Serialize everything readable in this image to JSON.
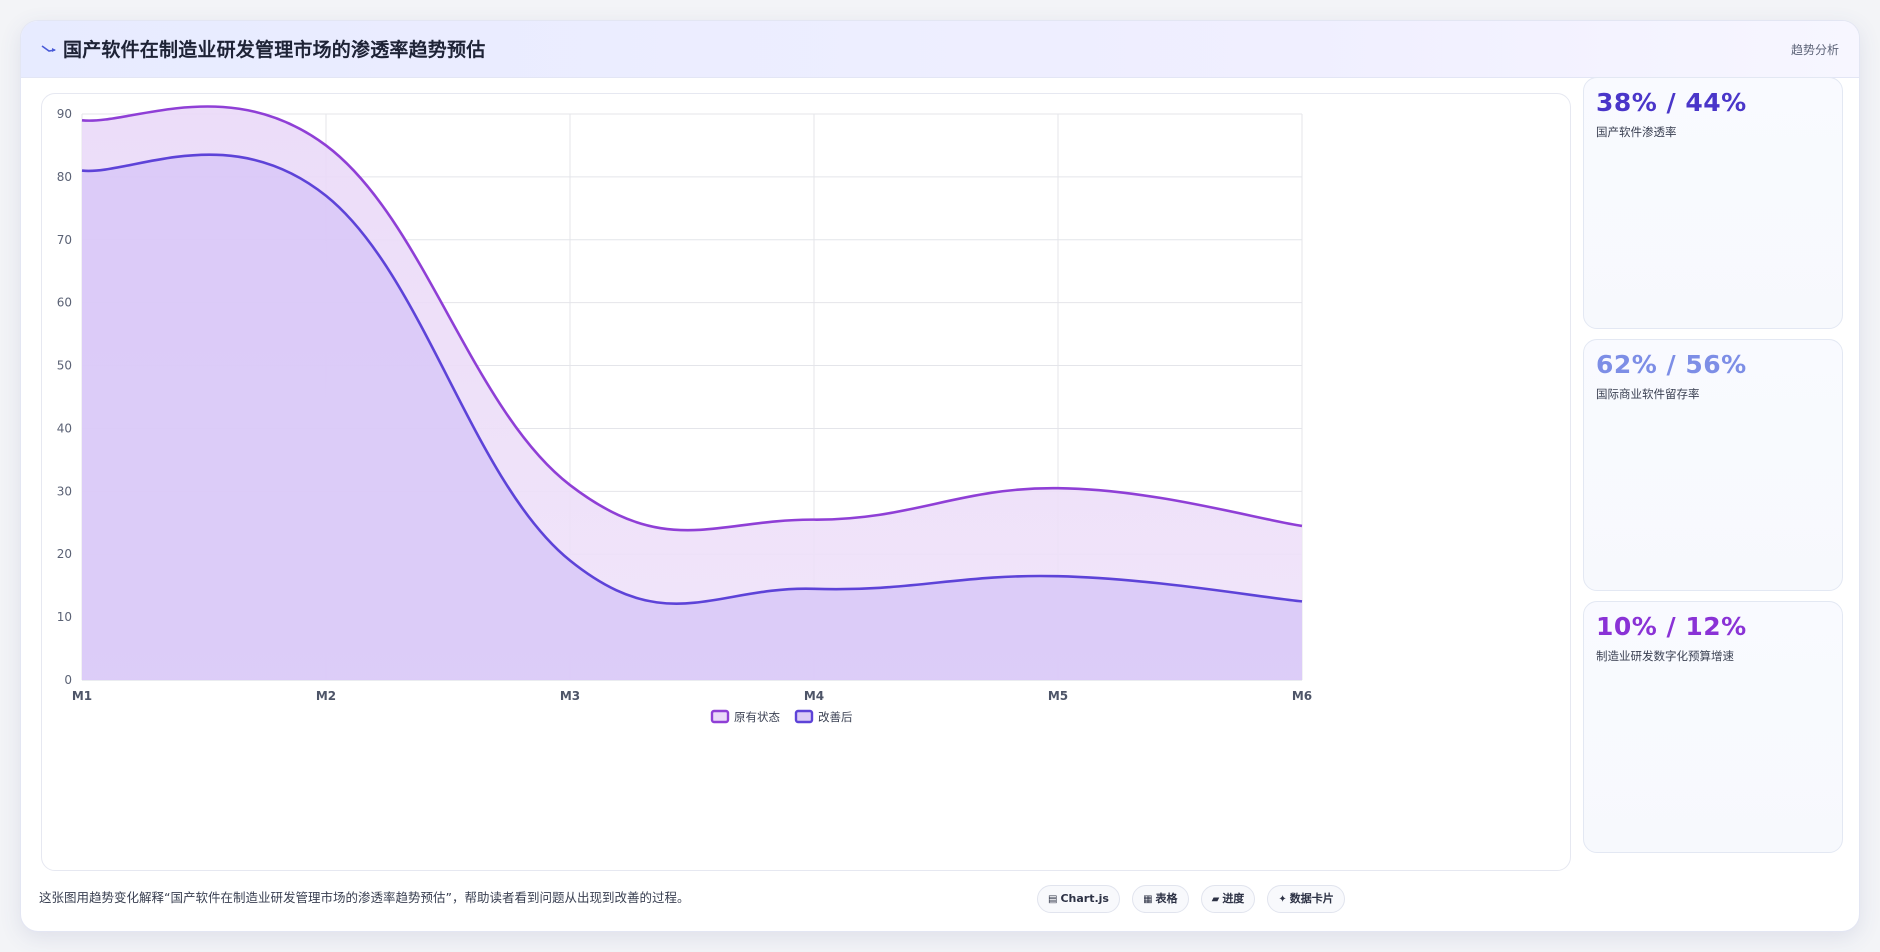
{
  "header": {
    "title": "国产软件在制造业研发管理市场的渗透率趋势预估",
    "badge": "趋势分析"
  },
  "chart_data": {
    "type": "area",
    "categories": [
      "M1",
      "M2",
      "M3",
      "M4",
      "M5",
      "M6"
    ],
    "series": [
      {
        "name": "原有状态",
        "values": [
          89,
          85,
          31,
          25.5,
          30.5,
          24.5
        ],
        "color": "#8f3fd6"
      },
      {
        "name": "改善后",
        "values": [
          81,
          77,
          19,
          14.5,
          16.5,
          12.5
        ],
        "color": "#5d43d8"
      }
    ],
    "ylim": [
      0,
      90
    ],
    "yticks": [
      0,
      10,
      20,
      30,
      40,
      50,
      60,
      70,
      80,
      90
    ],
    "grid": true,
    "legend_position": "bottom-center"
  },
  "kpis": [
    {
      "value": "38% / 44%",
      "label": "国产软件渗透率",
      "color": "#4a36c9"
    },
    {
      "value": "62% / 56%",
      "label": "国际商业软件留存率",
      "color": "#7d8ee6"
    },
    {
      "value": "10% / 12%",
      "label": "制造业研发数字化预算增速",
      "color": "#8a32d6"
    }
  ],
  "footer": {
    "description": "这张图用趋势变化解释“国产软件在制造业研发管理市场的渗透率趋势预估”，帮助读者看到问题从出现到改善的过程。",
    "pills": [
      {
        "icon": "▤",
        "label": "Chart.js"
      },
      {
        "icon": "▦",
        "label": "表格"
      },
      {
        "icon": "▰",
        "label": "进度"
      },
      {
        "icon": "✦",
        "label": "数据卡片"
      }
    ]
  }
}
